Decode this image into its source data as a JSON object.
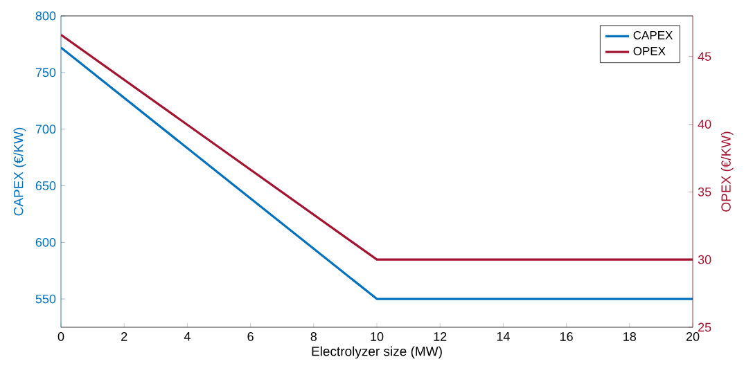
{
  "chart_data": {
    "type": "line",
    "xlabel": "Electrolyzer size (MW)",
    "ylabel": "CAPEX (€/KW)",
    "y2label": "OPEX (€/KW)",
    "x": [
      0,
      10,
      20
    ],
    "series": [
      {
        "name": "CAPEX",
        "color": "#0072bd",
        "values": [
          772,
          550,
          550
        ]
      },
      {
        "name": "OPEX",
        "color": "#a2142f",
        "values": [
          46.6,
          30,
          30
        ],
        "axis": "y2"
      }
    ],
    "xlim": [
      0,
      20
    ],
    "xticks": [
      0,
      2,
      4,
      6,
      8,
      10,
      12,
      14,
      16,
      18,
      20
    ],
    "ylim": [
      525,
      800
    ],
    "yticks": [
      550,
      600,
      650,
      700,
      750,
      800
    ],
    "y2lim": [
      25,
      48
    ],
    "y2ticks": [
      25,
      30,
      35,
      40,
      45
    ],
    "legend": "top right",
    "grid": false,
    "marker": "none",
    "line_style": "solid"
  }
}
